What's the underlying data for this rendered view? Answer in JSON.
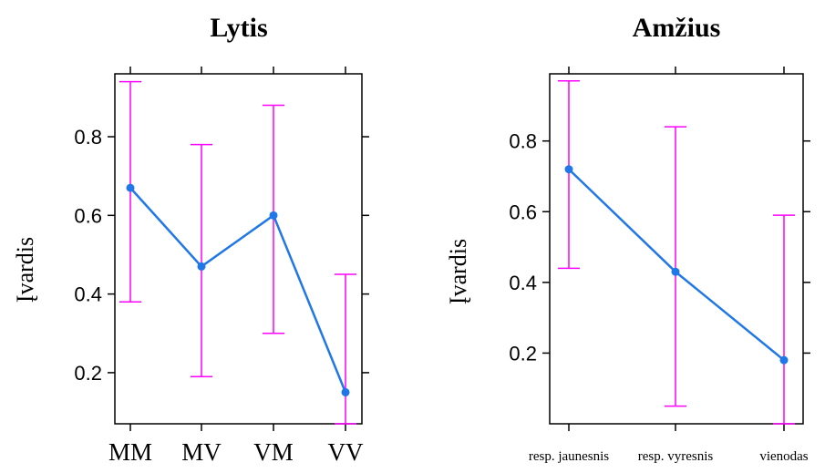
{
  "chart_data": [
    {
      "type": "line",
      "title": "Lytis",
      "xlabel": "",
      "ylabel": "Įvardis",
      "categories": [
        "MM",
        "MV",
        "VM",
        "VV"
      ],
      "values": [
        0.67,
        0.47,
        0.6,
        0.15
      ],
      "ci_lower": [
        0.38,
        0.19,
        0.3,
        0.07
      ],
      "ci_upper": [
        0.94,
        0.78,
        0.88,
        0.45
      ],
      "yticks": [
        "0.2",
        "0.4",
        "0.6",
        "0.8"
      ],
      "ytick_values": [
        0.2,
        0.4,
        0.6,
        0.8
      ],
      "ylim": [
        0.07,
        0.96
      ],
      "grid": false,
      "colors": {
        "line": "#1f77e8",
        "errorbar": "#ff00ff",
        "axis": "#000000"
      }
    },
    {
      "type": "line",
      "title": "Amžius",
      "xlabel": "",
      "ylabel": "Įvardis",
      "categories": [
        "resp. jaunesnis",
        "resp. vyresnis",
        "vienodas"
      ],
      "values": [
        0.72,
        0.43,
        0.18
      ],
      "ci_lower": [
        0.44,
        0.05,
        0.0
      ],
      "ci_upper": [
        0.97,
        0.84,
        0.59
      ],
      "yticks": [
        "0.2",
        "0.4",
        "0.6",
        "0.8"
      ],
      "ytick_values": [
        0.2,
        0.4,
        0.6,
        0.8
      ],
      "ylim": [
        0.0,
        0.99
      ],
      "grid": false,
      "colors": {
        "line": "#1f77e8",
        "errorbar": "#ff00ff",
        "axis": "#000000"
      }
    }
  ]
}
